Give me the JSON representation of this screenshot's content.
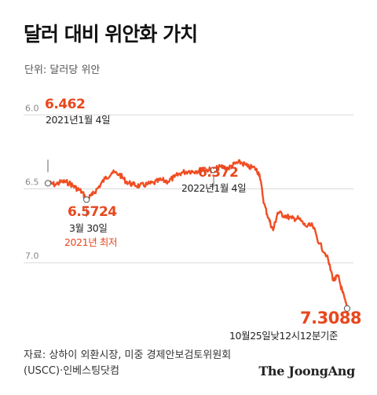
{
  "title": "달러 대비 위안화 가치",
  "unit_label": "단위: 달러당 위안",
  "source_line1": "자료: 상하이 외환시장, 미중 경제안보검토위원회",
  "source_line2": "(USCC)·인베스팅닷컴",
  "brand": "The JoongAng",
  "colors": {
    "line": "#f04e23",
    "accent": "#e8471d",
    "grid": "#d9d9d9",
    "text": "#222222"
  },
  "chart_data": {
    "type": "line",
    "title": "달러 대비 위안화 가치",
    "ylabel": "단위: 달러당 위안",
    "y_inverted": true,
    "ylim": [
      5.86,
      7.32
    ],
    "yticks": [
      6.0,
      6.5,
      7.0
    ],
    "ytick_labels": [
      "6.0",
      "6.5",
      "7.0"
    ],
    "grid": true,
    "series": [
      {
        "points": [
          [
            "2021-01-04",
            6.462
          ],
          [
            "2021-01-20",
            6.47
          ],
          [
            "2021-02-05",
            6.45
          ],
          [
            "2021-02-20",
            6.46
          ],
          [
            "2021-03-05",
            6.49
          ],
          [
            "2021-03-20",
            6.52
          ],
          [
            "2021-03-30",
            6.5724
          ],
          [
            "2021-04-12",
            6.54
          ],
          [
            "2021-04-25",
            6.49
          ],
          [
            "2021-05-10",
            6.43
          ],
          [
            "2021-05-25",
            6.39
          ],
          [
            "2021-06-10",
            6.4
          ],
          [
            "2021-06-25",
            6.45
          ],
          [
            "2021-07-10",
            6.47
          ],
          [
            "2021-07-25",
            6.48
          ],
          [
            "2021-08-10",
            6.47
          ],
          [
            "2021-08-25",
            6.46
          ],
          [
            "2021-09-10",
            6.44
          ],
          [
            "2021-09-25",
            6.45
          ],
          [
            "2021-10-10",
            6.42
          ],
          [
            "2021-10-25",
            6.39
          ],
          [
            "2021-11-10",
            6.38
          ],
          [
            "2021-11-25",
            6.38
          ],
          [
            "2021-12-10",
            6.37
          ],
          [
            "2021-12-25",
            6.37
          ],
          [
            "2022-01-04",
            6.372
          ],
          [
            "2022-01-20",
            6.35
          ],
          [
            "2022-02-05",
            6.36
          ],
          [
            "2022-02-20",
            6.33
          ],
          [
            "2022-03-05",
            6.32
          ],
          [
            "2022-03-20",
            6.35
          ],
          [
            "2022-04-05",
            6.36
          ],
          [
            "2022-04-15",
            6.4
          ],
          [
            "2022-04-25",
            6.6
          ],
          [
            "2022-05-05",
            6.7
          ],
          [
            "2022-05-15",
            6.78
          ],
          [
            "2022-05-25",
            6.66
          ],
          [
            "2022-06-10",
            6.68
          ],
          [
            "2022-06-25",
            6.7
          ],
          [
            "2022-07-10",
            6.7
          ],
          [
            "2022-07-25",
            6.75
          ],
          [
            "2022-08-10",
            6.75
          ],
          [
            "2022-08-25",
            6.87
          ],
          [
            "2022-09-10",
            6.95
          ],
          [
            "2022-09-25",
            7.12
          ],
          [
            "2022-10-05",
            7.09
          ],
          [
            "2022-10-15",
            7.2
          ],
          [
            "2022-10-25",
            7.3088
          ]
        ]
      }
    ],
    "annotations": [
      {
        "value": "6.462",
        "label": "2021년1월 4일",
        "date": "2021-01-04",
        "y": 6.462,
        "style": "highlight"
      },
      {
        "value": "6.5724",
        "label": "3월 30일",
        "sublabel": "2021년 최저",
        "date": "2021-03-30",
        "y": 6.5724,
        "style": "highlight"
      },
      {
        "value": "6.372",
        "label": "2022년1월 4일",
        "date": "2022-01-04",
        "y": 6.372,
        "style": "highlight"
      },
      {
        "value": "7.3088",
        "label": "10월25일낮12시12분기준",
        "date": "2022-10-25",
        "y": 7.3088,
        "style": "highlight-large"
      }
    ]
  }
}
